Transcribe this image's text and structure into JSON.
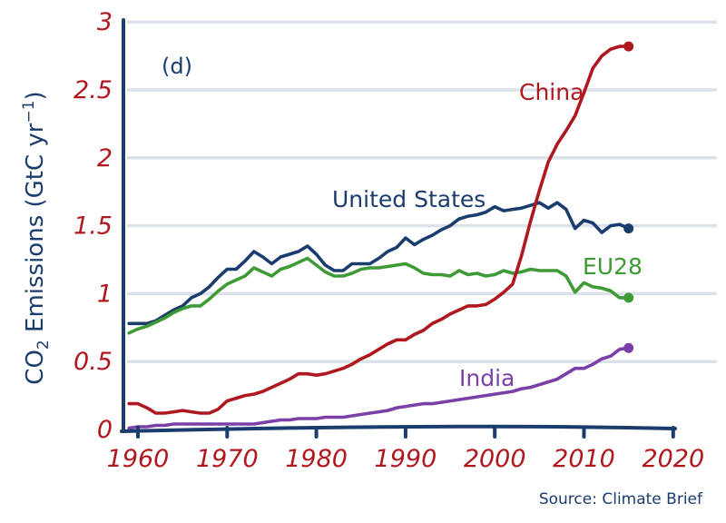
{
  "chart_data": {
    "type": "line",
    "panel_label": "(d)",
    "ylabel": "CO",
    "ylabel_sub": "2",
    "ylabel_rest": " Emissions (GtC yr",
    "ylabel_sup": "−1",
    "ylabel_close": ")",
    "xlabel": "",
    "xlim": [
      1960,
      2020
    ],
    "ylim": [
      0,
      3
    ],
    "x_ticks": [
      "1960",
      "1970",
      "1980",
      "1990",
      "2000",
      "2010",
      "2020"
    ],
    "x_tick_values": [
      1960,
      1970,
      1980,
      1990,
      2000,
      2010,
      2020
    ],
    "y_ticks": [
      "0",
      "0.5",
      "1",
      "1.5",
      "2",
      "2.5",
      "3"
    ],
    "y_tick_values": [
      0,
      0.5,
      1,
      1.5,
      2,
      2.5,
      3
    ],
    "grid": "horizontal",
    "source": "Source: Climate Brief",
    "x": [
      1959,
      1960,
      1961,
      1962,
      1963,
      1964,
      1965,
      1966,
      1967,
      1968,
      1969,
      1970,
      1971,
      1972,
      1973,
      1974,
      1975,
      1976,
      1977,
      1978,
      1979,
      1980,
      1981,
      1982,
      1983,
      1984,
      1985,
      1986,
      1987,
      1988,
      1989,
      1990,
      1991,
      1992,
      1993,
      1994,
      1995,
      1996,
      1997,
      1998,
      1999,
      2000,
      2001,
      2002,
      2003,
      2004,
      2005,
      2006,
      2007,
      2008,
      2009,
      2010,
      2011,
      2012,
      2013,
      2014,
      2015
    ],
    "series": [
      {
        "name": "United States",
        "color": "#1a3d6e",
        "values": [
          0.78,
          0.78,
          0.78,
          0.8,
          0.84,
          0.88,
          0.91,
          0.97,
          1.0,
          1.05,
          1.12,
          1.18,
          1.18,
          1.24,
          1.31,
          1.27,
          1.22,
          1.27,
          1.29,
          1.31,
          1.35,
          1.29,
          1.21,
          1.17,
          1.17,
          1.22,
          1.22,
          1.22,
          1.26,
          1.31,
          1.34,
          1.41,
          1.36,
          1.4,
          1.43,
          1.47,
          1.5,
          1.55,
          1.57,
          1.58,
          1.6,
          1.64,
          1.61,
          1.62,
          1.63,
          1.65,
          1.67,
          1.63,
          1.67,
          1.62,
          1.48,
          1.54,
          1.52,
          1.45,
          1.5,
          1.51,
          1.48
        ]
      },
      {
        "name": "EU28",
        "color": "#3d9a35",
        "values": [
          0.71,
          0.74,
          0.76,
          0.79,
          0.82,
          0.86,
          0.89,
          0.91,
          0.91,
          0.96,
          1.02,
          1.07,
          1.1,
          1.13,
          1.19,
          1.16,
          1.13,
          1.18,
          1.2,
          1.23,
          1.26,
          1.21,
          1.16,
          1.13,
          1.13,
          1.15,
          1.18,
          1.19,
          1.19,
          1.2,
          1.21,
          1.22,
          1.19,
          1.15,
          1.14,
          1.14,
          1.13,
          1.17,
          1.14,
          1.15,
          1.13,
          1.14,
          1.17,
          1.15,
          1.16,
          1.18,
          1.17,
          1.17,
          1.17,
          1.13,
          1.01,
          1.08,
          1.05,
          1.04,
          1.02,
          0.97,
          0.97
        ]
      },
      {
        "name": "China",
        "color": "#b0181f",
        "values": [
          0.19,
          0.19,
          0.16,
          0.12,
          0.12,
          0.13,
          0.14,
          0.13,
          0.12,
          0.12,
          0.15,
          0.21,
          0.23,
          0.25,
          0.26,
          0.28,
          0.31,
          0.34,
          0.37,
          0.41,
          0.41,
          0.4,
          0.41,
          0.43,
          0.45,
          0.48,
          0.52,
          0.55,
          0.59,
          0.63,
          0.66,
          0.66,
          0.7,
          0.73,
          0.78,
          0.81,
          0.85,
          0.88,
          0.91,
          0.91,
          0.92,
          0.96,
          1.01,
          1.07,
          1.28,
          1.53,
          1.76,
          1.97,
          2.1,
          2.2,
          2.31,
          2.48,
          2.66,
          2.75,
          2.8,
          2.82,
          2.82
        ]
      },
      {
        "name": "India",
        "color": "#7b3fa8",
        "values": [
          0.01,
          0.02,
          0.02,
          0.03,
          0.03,
          0.04,
          0.04,
          0.04,
          0.04,
          0.04,
          0.04,
          0.04,
          0.04,
          0.04,
          0.04,
          0.05,
          0.06,
          0.07,
          0.07,
          0.08,
          0.08,
          0.08,
          0.09,
          0.09,
          0.09,
          0.1,
          0.11,
          0.12,
          0.13,
          0.14,
          0.16,
          0.17,
          0.18,
          0.19,
          0.19,
          0.2,
          0.21,
          0.22,
          0.23,
          0.24,
          0.25,
          0.26,
          0.27,
          0.28,
          0.3,
          0.31,
          0.33,
          0.35,
          0.37,
          0.41,
          0.45,
          0.45,
          0.48,
          0.52,
          0.54,
          0.59,
          0.6
        ]
      }
    ],
    "annotations": [
      {
        "text": "United States",
        "series": "United States"
      },
      {
        "text": "EU28",
        "series": "EU28"
      },
      {
        "text": "China",
        "series": "China"
      },
      {
        "text": "India",
        "series": "India"
      }
    ]
  }
}
